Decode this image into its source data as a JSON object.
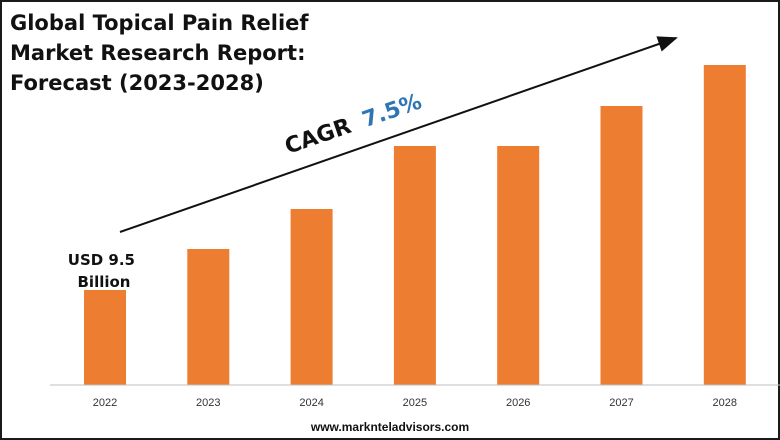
{
  "title": {
    "line1": "Global Topical Pain Relief",
    "line2": "Market Research Report:",
    "line3": "Forecast (2023-2028)"
  },
  "cagr": {
    "label": "CAGR",
    "value": "7.5%"
  },
  "first_value_label": {
    "line1": "USD 9.5",
    "line2": "Billion"
  },
  "footer": {
    "url": "www.marknteladvisors.com"
  },
  "colors": {
    "bar": "#ED7D31",
    "cagr_value": "#2E75B6",
    "text": "#111111"
  },
  "chart_data": {
    "type": "bar",
    "categories": [
      "2022",
      "2023",
      "2024",
      "2025",
      "2026",
      "2027",
      "2028"
    ],
    "values": [
      9.5,
      13.6,
      17.6,
      23.9,
      23.9,
      27.9,
      32.0
    ],
    "annotations": [
      "USD 9.5 Billion",
      "CAGR 7.5%"
    ],
    "ylim": [
      0,
      35
    ],
    "grid": false,
    "legend": "none"
  }
}
